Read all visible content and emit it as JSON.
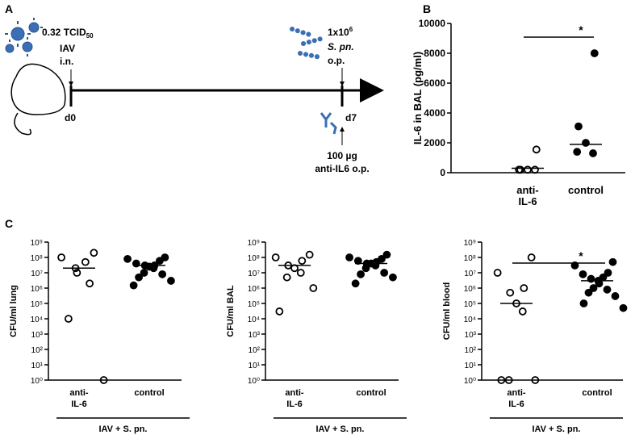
{
  "diagram": {
    "panel": "A",
    "dose": "0.32 TCID",
    "dose_sub": "50",
    "virus": "IAV",
    "virus_route": "i.n.",
    "day0": "d0",
    "bact_dose": "1x10",
    "bact_dose_sup": "6",
    "bacteria": "S. pn.",
    "bact_route": "o.p.",
    "day7": "d7",
    "ab_dose": "100 µg",
    "ab_route": "anti-IL6 o.p."
  },
  "chart_data": [
    {
      "type": "dot",
      "panel": "B",
      "ylabel": "IL-6 in BAL (pg/ml)",
      "categories": [
        "anti-\nIL-6",
        "control"
      ],
      "values": [
        [
          1550,
          200,
          200,
          200,
          200
        ],
        [
          8000,
          3100,
          2000,
          1300,
          1400
        ]
      ],
      "medians": [
        300,
        1900
      ],
      "marker_fill": [
        "none",
        "#000"
      ],
      "ylim": [
        0,
        10000
      ],
      "yticks": [
        0,
        2000,
        4000,
        6000,
        8000,
        10000
      ],
      "log": false,
      "significance": "*"
    },
    {
      "type": "dot",
      "panel": "C",
      "ylabel": "CFU/ml lung",
      "categories": [
        "anti-\nIL-6",
        "control"
      ],
      "values": [
        [
          200000000,
          100000000,
          50000000,
          20000000,
          10000000,
          2000000,
          10000,
          1
        ],
        [
          100000000,
          80000000,
          60000000,
          40000000,
          30000000,
          30000000,
          25000000,
          20000000,
          10000000,
          8000000,
          5000000,
          3000000,
          1500000
        ]
      ],
      "medians": [
        20000000,
        30000000
      ],
      "marker_fill": [
        "none",
        "#000"
      ],
      "ylim": [
        1,
        1000000000
      ],
      "yticks": [
        {
          "value": 1,
          "label": "10⁰"
        },
        {
          "value": 10,
          "label": "10¹"
        },
        {
          "value": 100,
          "label": "10²"
        },
        {
          "value": 1000,
          "label": "10³"
        },
        {
          "value": 10000,
          "label": "10⁴"
        },
        {
          "value": 100000,
          "label": "10⁵"
        },
        {
          "value": 1000000,
          "label": "10⁶"
        },
        {
          "value": 10000000,
          "label": "10⁷"
        },
        {
          "value": 100000000,
          "label": "10⁸"
        },
        {
          "value": 1000000000,
          "label": "10⁹"
        }
      ],
      "log": true,
      "group_label": "IAV + S. pn."
    },
    {
      "type": "dot",
      "ylabel": "CFU/ml BAL",
      "categories": [
        "anti-\nIL-6",
        "control"
      ],
      "values": [
        [
          150000000,
          100000000,
          60000000,
          30000000,
          20000000,
          10000000,
          5000000,
          1000000,
          30000
        ],
        [
          150000000,
          100000000,
          80000000,
          60000000,
          50000000,
          40000000,
          40000000,
          30000000,
          20000000,
          10000000,
          8000000,
          5000000,
          2000000
        ]
      ],
      "medians": [
        30000000,
        40000000
      ],
      "marker_fill": [
        "none",
        "#000"
      ],
      "ylim": [
        1,
        1000000000
      ],
      "yticks": [
        {
          "value": 1,
          "label": "10⁰"
        },
        {
          "value": 10,
          "label": "10¹"
        },
        {
          "value": 100,
          "label": "10²"
        },
        {
          "value": 1000,
          "label": "10³"
        },
        {
          "value": 10000,
          "label": "10⁴"
        },
        {
          "value": 100000,
          "label": "10⁵"
        },
        {
          "value": 1000000,
          "label": "10⁶"
        },
        {
          "value": 10000000,
          "label": "10⁷"
        },
        {
          "value": 100000000,
          "label": "10⁸"
        },
        {
          "value": 1000000000,
          "label": "10⁹"
        }
      ],
      "log": true,
      "group_label": "IAV + S. pn."
    },
    {
      "type": "dot",
      "ylabel": "CFU/ml blood",
      "categories": [
        "anti-\nIL-6",
        "control"
      ],
      "values": [
        [
          100000000,
          10000000,
          1000000,
          500000,
          100000,
          30000,
          1,
          1,
          1
        ],
        [
          50000000,
          30000000,
          10000000,
          8000000,
          5000000,
          4000000,
          3000000,
          2000000,
          1000000,
          800000,
          500000,
          300000,
          100000,
          50000
        ]
      ],
      "medians": [
        100000,
        3000000
      ],
      "marker_fill": [
        "none",
        "#000"
      ],
      "ylim": [
        1,
        1000000000
      ],
      "yticks": [
        {
          "value": 1,
          "label": "10⁰"
        },
        {
          "value": 10,
          "label": "10¹"
        },
        {
          "value": 100,
          "label": "10²"
        },
        {
          "value": 1000,
          "label": "10³"
        },
        {
          "value": 10000,
          "label": "10⁴"
        },
        {
          "value": 100000,
          "label": "10⁵"
        },
        {
          "value": 1000000,
          "label": "10⁶"
        },
        {
          "value": 10000000,
          "label": "10⁷"
        },
        {
          "value": 100000000,
          "label": "10⁸"
        },
        {
          "value": 1000000000,
          "label": "10⁹"
        }
      ],
      "log": true,
      "significance": "*",
      "group_label": "IAV + S. pn."
    }
  ]
}
